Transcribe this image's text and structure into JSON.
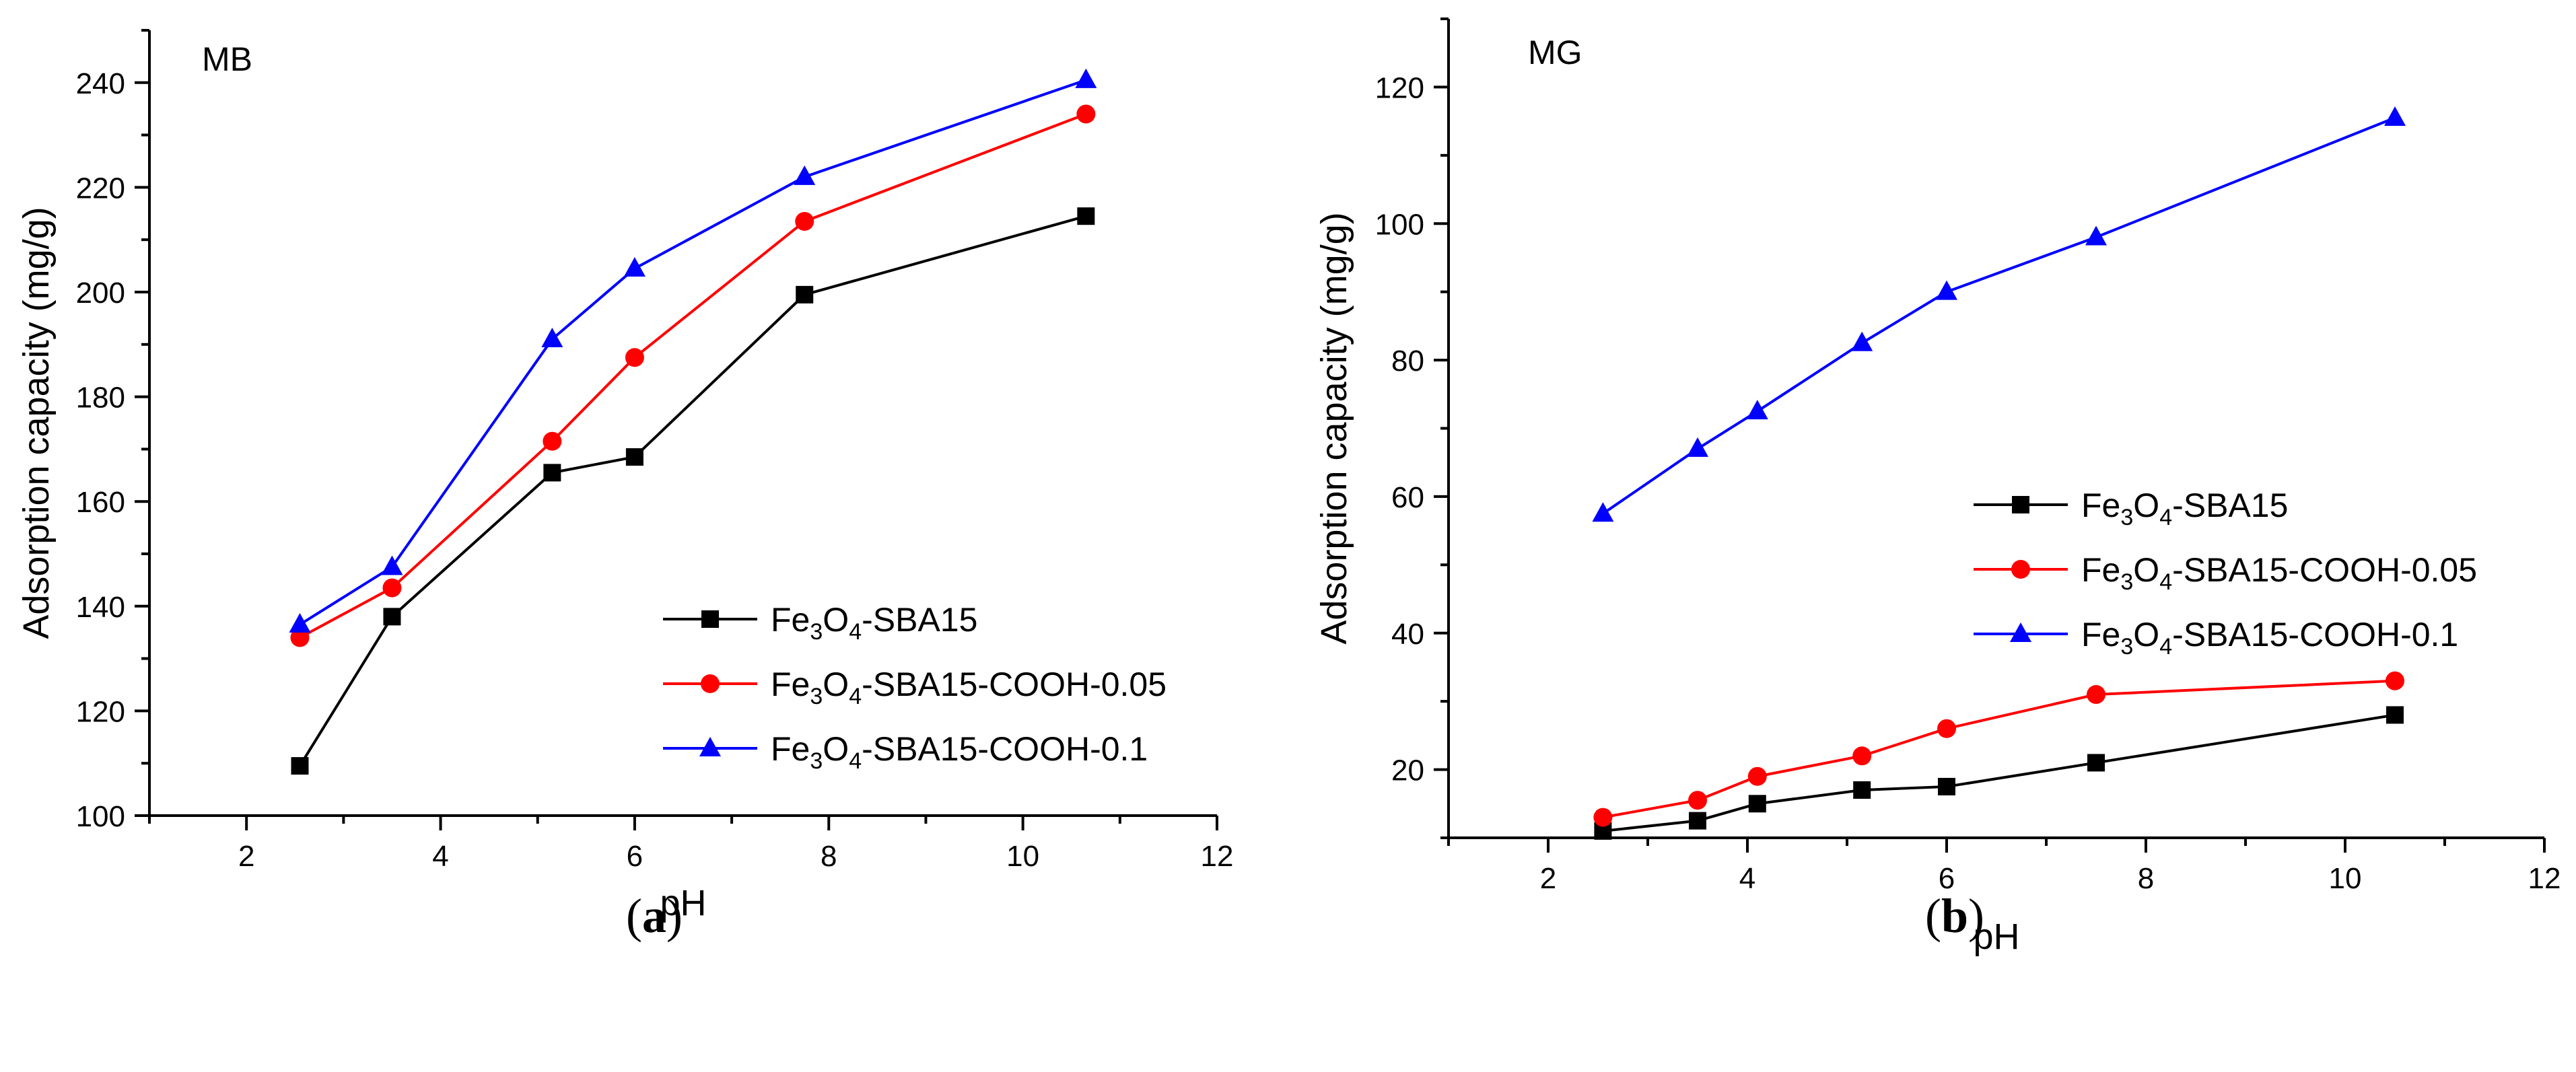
{
  "chart_data": [
    {
      "type": "line",
      "title": "MB",
      "caption_letter": "a",
      "xlabel": "pH",
      "ylabel": "Adsorption capacity (mg/g)",
      "xlim": [
        1,
        12
      ],
      "ylim": [
        100,
        250
      ],
      "xticks": [
        2,
        4,
        6,
        8,
        10,
        12
      ],
      "yticks": [
        100,
        120,
        140,
        160,
        180,
        200,
        220,
        240
      ],
      "legend_position": "bottom-right",
      "series": [
        {
          "name": "Fe3O4-SBA15",
          "label_parts": [
            "Fe",
            "3",
            "O",
            "4",
            "-SBA15"
          ],
          "color": "#000000",
          "marker": "square",
          "x": [
            2.55,
            3.5,
            5.15,
            6.0,
            7.75,
            10.65
          ],
          "y": [
            109.5,
            138,
            165.5,
            168.5,
            199.5,
            214.5
          ]
        },
        {
          "name": "Fe3O4-SBA15-COOH-0.05",
          "label_parts": [
            "Fe",
            "3",
            "O",
            "4",
            "-SBA15-COOH-0.05"
          ],
          "color": "#ff0000",
          "marker": "circle",
          "x": [
            2.55,
            3.5,
            5.15,
            6.0,
            7.75,
            10.65
          ],
          "y": [
            134,
            143.5,
            171.5,
            187.5,
            213.5,
            234
          ]
        },
        {
          "name": "Fe3O4-SBA15-COOH-0.1",
          "label_parts": [
            "Fe",
            "3",
            "O",
            "4",
            "-SBA15-COOH-0.1"
          ],
          "color": "#0000ff",
          "marker": "triangle",
          "x": [
            2.55,
            3.5,
            5.15,
            6.0,
            7.75,
            10.65
          ],
          "y": [
            136.5,
            147.5,
            191,
            204.5,
            222,
            240.5
          ]
        }
      ]
    },
    {
      "type": "line",
      "title": "MG",
      "caption_letter": "b",
      "xlabel": "pH",
      "ylabel": "Adsorption capacity (mg/g)",
      "xlim": [
        1,
        12
      ],
      "ylim": [
        10,
        130
      ],
      "xticks": [
        2,
        4,
        6,
        8,
        10,
        12
      ],
      "yticks": [
        20,
        40,
        60,
        80,
        100,
        120
      ],
      "legend_position": "center-right",
      "series": [
        {
          "name": "Fe3O4-SBA15",
          "label_parts": [
            "Fe",
            "3",
            "O",
            "4",
            "-SBA15"
          ],
          "color": "#000000",
          "marker": "square",
          "x": [
            2.55,
            3.5,
            4.1,
            5.15,
            6.0,
            7.5,
            10.5
          ],
          "y": [
            11,
            12.5,
            15,
            17,
            17.5,
            21,
            28
          ]
        },
        {
          "name": "Fe3O4-SBA15-COOH-0.05",
          "label_parts": [
            "Fe",
            "3",
            "O",
            "4",
            "-SBA15-COOH-0.05"
          ],
          "color": "#ff0000",
          "marker": "circle",
          "x": [
            2.55,
            3.5,
            4.1,
            5.15,
            6.0,
            7.5,
            10.5
          ],
          "y": [
            13,
            15.5,
            19,
            22,
            26,
            31,
            33
          ]
        },
        {
          "name": "Fe3O4-SBA15-COOH-0.1",
          "label_parts": [
            "Fe",
            "3",
            "O",
            "4",
            "-SBA15-COOH-0.1"
          ],
          "color": "#0000ff",
          "marker": "triangle",
          "x": [
            2.55,
            3.5,
            4.1,
            5.15,
            6.0,
            7.5,
            10.5
          ],
          "y": [
            57.5,
            67,
            72.5,
            82.5,
            90,
            98,
            115.5
          ]
        }
      ]
    }
  ]
}
